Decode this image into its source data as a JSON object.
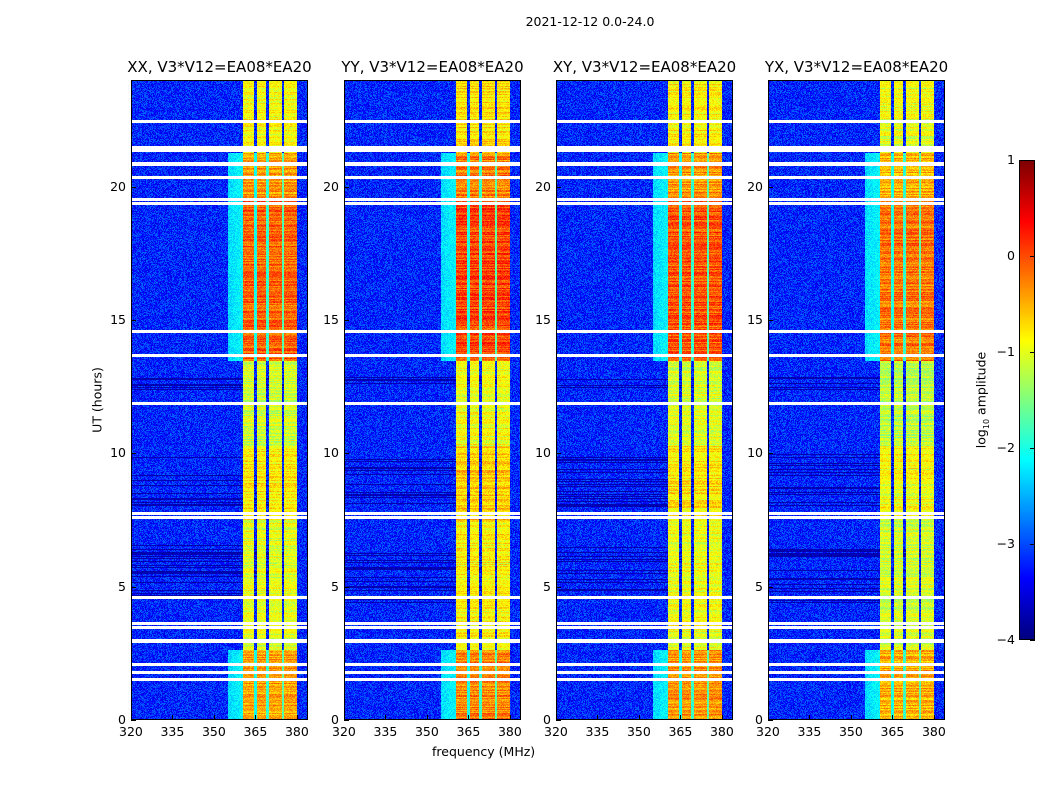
{
  "chart_data": {
    "type": "heatmap",
    "suptitle": "2021-12-12 0.0-24.0",
    "xlabel": "frequency (MHz)",
    "ylabel": "UT (hours)",
    "xlim": [
      320,
      384
    ],
    "ylim": [
      0,
      24
    ],
    "xticks": [
      "320",
      "335",
      "350",
      "365",
      "380"
    ],
    "xtick_values": [
      320,
      335,
      350,
      365,
      380
    ],
    "yticks": [
      "0",
      "5",
      "10",
      "15",
      "20"
    ],
    "ytick_values": [
      0,
      5,
      10,
      15,
      20
    ],
    "colormap": "jet",
    "colorbar": {
      "label_main": "log",
      "label_sub": "10",
      "label_rest": " amplitude",
      "range": [
        -4,
        1
      ],
      "ticks": [
        "1",
        "0",
        "−1",
        "−2",
        "−3",
        "−4"
      ],
      "tick_values": [
        1,
        0,
        -1,
        -2,
        -3,
        -4
      ]
    },
    "panels": [
      {
        "title": "XX, V3*V12=EA08*EA20",
        "offset": 0.0
      },
      {
        "title": "YY, V3*V12=EA08*EA20",
        "offset": 0.15
      },
      {
        "title": "XY, V3*V12=EA08*EA20",
        "offset": 0.05
      },
      {
        "title": "YX, V3*V12=EA08*EA20",
        "offset": -0.1
      }
    ],
    "background_level": -3.2,
    "subbands_mhz": [
      [
        360.5,
        364.5
      ],
      [
        365.5,
        369
      ],
      [
        370,
        374.5
      ],
      [
        375.5,
        380
      ]
    ],
    "band_levels_by_time": [
      {
        "t": [
          0,
          2.6
        ],
        "level": -0.4
      },
      {
        "t": [
          2.6,
          7.5
        ],
        "level": -1.0
      },
      {
        "t": [
          7.5,
          10.3
        ],
        "level": -0.8
      },
      {
        "t": [
          10.3,
          13.5
        ],
        "level": -1.1
      },
      {
        "t": [
          13.5,
          19.5
        ],
        "level": -0.1
      },
      {
        "t": [
          19.5,
          21.3
        ],
        "level": -0.4
      },
      {
        "t": [
          21.3,
          24
        ],
        "level": -0.9
      }
    ],
    "dark_rows_hours": [
      [
        4.4,
        6.6
      ],
      [
        8.0,
        10.0
      ],
      [
        12.4,
        12.9
      ]
    ],
    "flagged_rows_hours": [
      1.5,
      1.76,
      2.06,
      2.95,
      3.45,
      3.6,
      4.6,
      7.6,
      7.76,
      11.9,
      13.7,
      14.6,
      19.4,
      19.55,
      20.4,
      20.9,
      21.4,
      21.5,
      22.5
    ]
  }
}
